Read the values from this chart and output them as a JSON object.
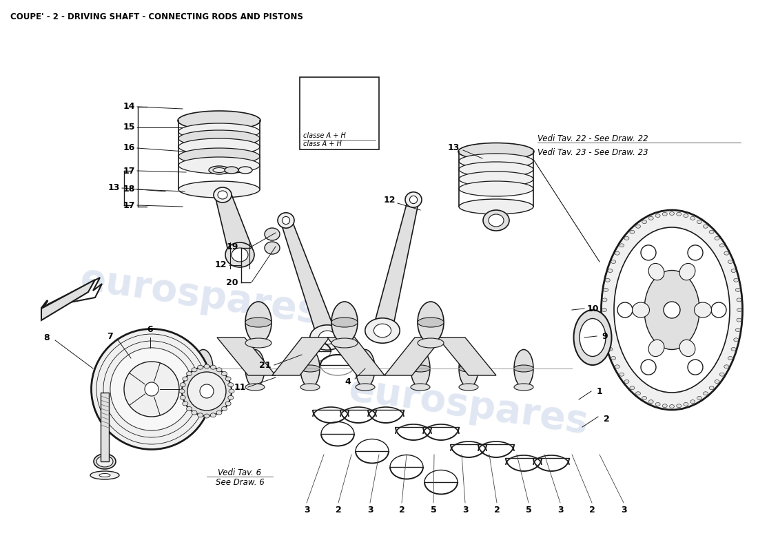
{
  "title": "COUPE' - 2 - DRIVING SHAFT - CONNECTING RODS AND PISTONS",
  "background_color": "#ffffff",
  "watermark_text": "eurospares",
  "watermark_color": "#c8d4e8",
  "vedi_tav_22": "Vedi Tav. 22 - See Draw. 22",
  "vedi_tav_23": "Vedi Tav. 23 - See Draw. 23",
  "vedi_tav_6_line1": "Vedi Tav. 6",
  "vedi_tav_6_line2": "See Draw. 6",
  "classe_line1": "classe A + H",
  "classe_line2": "class A + H",
  "fig_width": 11.0,
  "fig_height": 8.0,
  "dpi": 100,
  "line_color": "#1a1a1a",
  "fill_light": "#f0f0f0",
  "fill_mid": "#e0e0e0",
  "fill_dark": "#c8c8c8"
}
